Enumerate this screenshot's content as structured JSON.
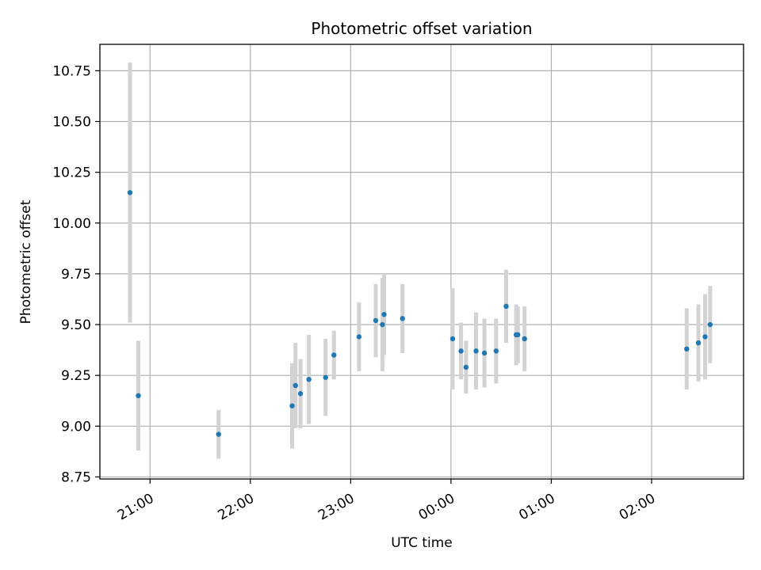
{
  "chart_data": {
    "type": "scatter",
    "title": "Photometric offset variation",
    "xlabel": "UTC time",
    "ylabel": "Photometric offset",
    "x_unit": "UTC time (hh:mm), times after midnight continue past 24:00",
    "x_ticks": [
      "21:00",
      "22:00",
      "23:00",
      "00:00",
      "01:00",
      "02:00"
    ],
    "x_tick_values": [
      "21:00",
      "22:00",
      "23:00",
      "24:00",
      "25:00",
      "26:00"
    ],
    "xlim": [
      "20:30",
      "26:55"
    ],
    "y_ticks": [
      "8.75",
      "9.00",
      "9.25",
      "9.50",
      "9.75",
      "10.00",
      "10.25",
      "10.50",
      "10.75"
    ],
    "ylim": [
      8.74,
      10.88
    ],
    "grid": true,
    "colors": {
      "points": "#1f77b4",
      "error_bars": "#d3d3d3"
    },
    "series": [
      {
        "points": [
          {
            "x": "20:48",
            "y": 10.15,
            "err": 0.64
          },
          {
            "x": "20:53",
            "y": 9.15,
            "err": 0.27
          },
          {
            "x": "21:41",
            "y": 8.96,
            "err": 0.12
          },
          {
            "x": "22:25",
            "y": 9.1,
            "err": 0.21
          },
          {
            "x": "22:27",
            "y": 9.2,
            "err": 0.21
          },
          {
            "x": "22:30",
            "y": 9.16,
            "err": 0.17
          },
          {
            "x": "22:35",
            "y": 9.23,
            "err": 0.22
          },
          {
            "x": "22:45",
            "y": 9.24,
            "err": 0.19
          },
          {
            "x": "22:50",
            "y": 9.35,
            "err": 0.12
          },
          {
            "x": "23:05",
            "y": 9.44,
            "err": 0.17
          },
          {
            "x": "23:15",
            "y": 9.52,
            "err": 0.18
          },
          {
            "x": "23:19",
            "y": 9.5,
            "err": 0.23
          },
          {
            "x": "23:20",
            "y": 9.55,
            "err": 0.2
          },
          {
            "x": "23:31",
            "y": 9.53,
            "err": 0.17
          },
          {
            "x": "24:01",
            "y": 9.43,
            "err": 0.25
          },
          {
            "x": "24:06",
            "y": 9.37,
            "err": 0.14
          },
          {
            "x": "24:09",
            "y": 9.29,
            "err": 0.13
          },
          {
            "x": "24:15",
            "y": 9.37,
            "err": 0.19
          },
          {
            "x": "24:20",
            "y": 9.36,
            "err": 0.17
          },
          {
            "x": "24:27",
            "y": 9.37,
            "err": 0.16
          },
          {
            "x": "24:33",
            "y": 9.59,
            "err": 0.18
          },
          {
            "x": "24:39",
            "y": 9.45,
            "err": 0.15
          },
          {
            "x": "24:40",
            "y": 9.45,
            "err": 0.14
          },
          {
            "x": "24:44",
            "y": 9.43,
            "err": 0.16
          },
          {
            "x": "26:21",
            "y": 9.38,
            "err": 0.2
          },
          {
            "x": "26:28",
            "y": 9.41,
            "err": 0.19
          },
          {
            "x": "26:32",
            "y": 9.44,
            "err": 0.21
          },
          {
            "x": "26:35",
            "y": 9.5,
            "err": 0.19
          }
        ]
      }
    ]
  }
}
